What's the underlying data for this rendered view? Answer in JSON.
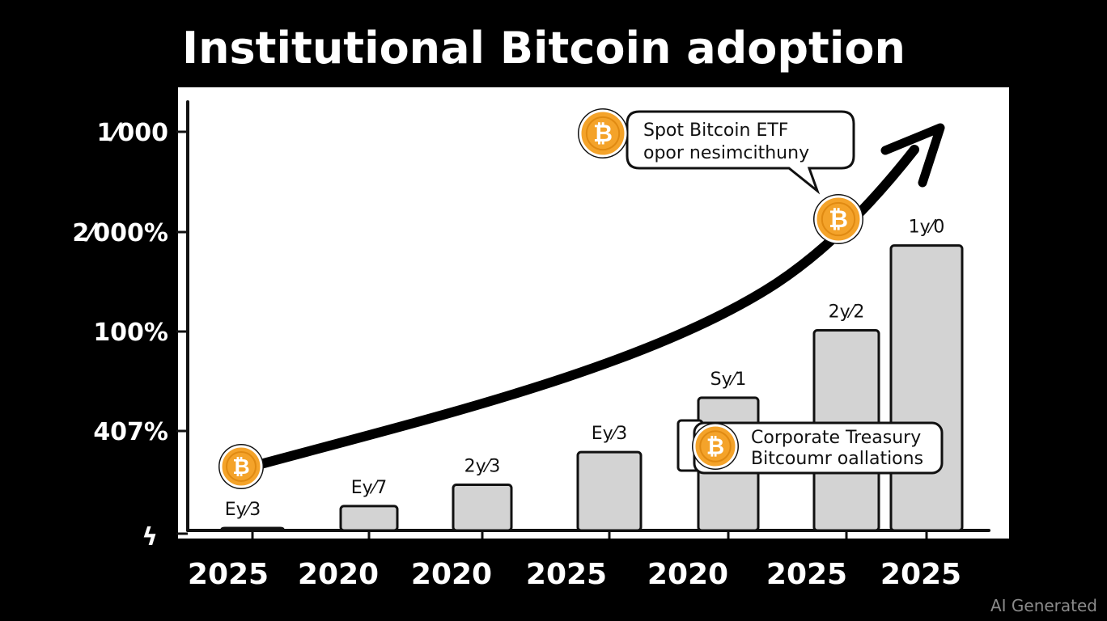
{
  "chart_data": {
    "type": "bar",
    "title": "Institutional Bitcoin adoption",
    "y_tick_labels": [
      "1⁄000",
      "2⁄000%",
      "100%",
      "407%",
      "ϟ"
    ],
    "categories": [
      "2025",
      "2020",
      "2020",
      "2025",
      "2020",
      "2025",
      "2025"
    ],
    "bar_labels": [
      "Ey⁄3",
      "Ey⁄7",
      "2y⁄3",
      "Ey⁄3",
      "Sy⁄1",
      "2y⁄2",
      "1y⁄0"
    ],
    "values": [
      0.3,
      5.6,
      10.5,
      18.0,
      30.5,
      46.0,
      65.5
    ],
    "ylim": [
      0,
      100
    ],
    "grid": false,
    "trend_arrow": true,
    "annotations": [
      {
        "lines": [
          "Spot Bitcoin ETF",
          "opor nesimcithuny"
        ]
      },
      {
        "lines": [
          "Corporate Treasury",
          "Bitcoumr oallations"
        ]
      }
    ],
    "coin_symbol": "₿",
    "colors": {
      "background": "#000000",
      "panel": "#ffffff",
      "bar": "#d3d3d3",
      "outline": "#111111",
      "coin": "#f4a32a",
      "coin_rim": "#ffffff"
    }
  },
  "watermark": "AI Generated"
}
